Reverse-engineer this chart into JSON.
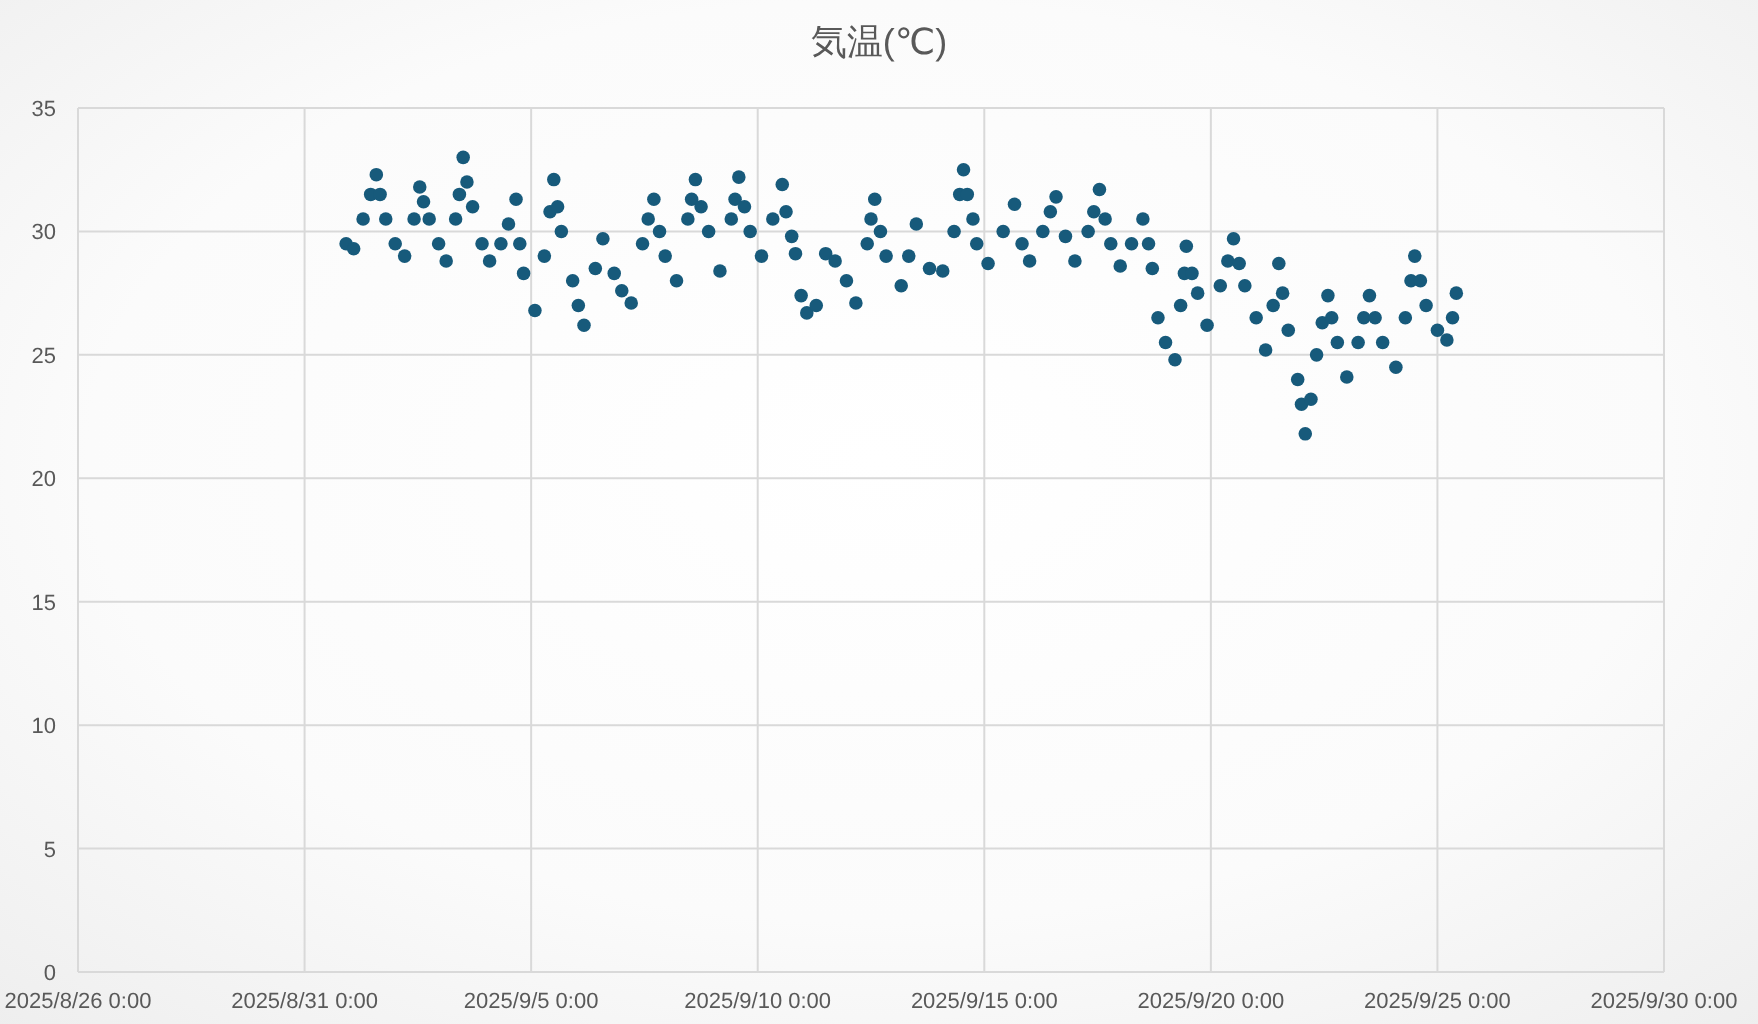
{
  "chart_data": {
    "type": "scatter",
    "title": "気温(℃)",
    "x": [
      "2025-08-31T22:00",
      "2025-09-01T02:00",
      "2025-09-01T07:00",
      "2025-09-01T11:00",
      "2025-09-01T14:00",
      "2025-09-01T16:00",
      "2025-09-01T19:00",
      "2025-09-02T00:00",
      "2025-09-02T05:00",
      "2025-09-02T10:00",
      "2025-09-02T13:00",
      "2025-09-02T15:00",
      "2025-09-02T18:00",
      "2025-09-02T23:00",
      "2025-09-03T03:00",
      "2025-09-03T08:00",
      "2025-09-03T10:00",
      "2025-09-03T12:00",
      "2025-09-03T14:00",
      "2025-09-03T17:00",
      "2025-09-03T22:00",
      "2025-09-04T02:00",
      "2025-09-04T08:00",
      "2025-09-04T12:00",
      "2025-09-04T16:00",
      "2025-09-04T18:00",
      "2025-09-04T20:00",
      "2025-09-05T02:00",
      "2025-09-05T07:00",
      "2025-09-05T10:00",
      "2025-09-05T12:00",
      "2025-09-05T14:00",
      "2025-09-05T16:00",
      "2025-09-05T22:00",
      "2025-09-06T01:00",
      "2025-09-06T04:00",
      "2025-09-06T10:00",
      "2025-09-06T14:00",
      "2025-09-06T20:00",
      "2025-09-07T00:00",
      "2025-09-07T05:00",
      "2025-09-07T11:00",
      "2025-09-07T14:00",
      "2025-09-07T17:00",
      "2025-09-07T20:00",
      "2025-09-07T23:00",
      "2025-09-08T05:00",
      "2025-09-08T11:00",
      "2025-09-08T13:00",
      "2025-09-08T15:00",
      "2025-09-08T18:00",
      "2025-09-08T22:00",
      "2025-09-09T04:00",
      "2025-09-09T10:00",
      "2025-09-09T12:00",
      "2025-09-09T14:00",
      "2025-09-09T17:00",
      "2025-09-09T20:00",
      "2025-09-10T02:00",
      "2025-09-10T08:00",
      "2025-09-10T13:00",
      "2025-09-10T15:00",
      "2025-09-10T18:00",
      "2025-09-10T20:00",
      "2025-09-10T23:00",
      "2025-09-11T02:00",
      "2025-09-11T07:00",
      "2025-09-11T12:00",
      "2025-09-11T17:00",
      "2025-09-11T23:00",
      "2025-09-12T04:00",
      "2025-09-12T10:00",
      "2025-09-12T12:00",
      "2025-09-12T14:00",
      "2025-09-12T17:00",
      "2025-09-12T20:00",
      "2025-09-13T04:00",
      "2025-09-13T08:00",
      "2025-09-13T12:00",
      "2025-09-13T19:00",
      "2025-09-14T02:00",
      "2025-09-14T08:00",
      "2025-09-14T11:00",
      "2025-09-14T13:00",
      "2025-09-14T15:00",
      "2025-09-14T18:00",
      "2025-09-14T20:00",
      "2025-09-15T02:00",
      "2025-09-15T10:00",
      "2025-09-15T16:00",
      "2025-09-15T20:00",
      "2025-09-16T00:00",
      "2025-09-16T07:00",
      "2025-09-16T11:00",
      "2025-09-16T14:00",
      "2025-09-16T19:00",
      "2025-09-17T00:00",
      "2025-09-17T07:00",
      "2025-09-17T10:00",
      "2025-09-17T13:00",
      "2025-09-17T16:00",
      "2025-09-17T19:00",
      "2025-09-18T00:00",
      "2025-09-18T06:00",
      "2025-09-18T12:00",
      "2025-09-18T15:00",
      "2025-09-18T17:00",
      "2025-09-18T20:00",
      "2025-09-19T00:00",
      "2025-09-19T05:00",
      "2025-09-19T08:00",
      "2025-09-19T10:00",
      "2025-09-19T11:00",
      "2025-09-19T14:00",
      "2025-09-19T17:00",
      "2025-09-19T22:00",
      "2025-09-20T05:00",
      "2025-09-20T09:00",
      "2025-09-20T12:00",
      "2025-09-20T15:00",
      "2025-09-20T18:00",
      "2025-09-21T00:00",
      "2025-09-21T05:00",
      "2025-09-21T09:00",
      "2025-09-21T12:00",
      "2025-09-21T14:00",
      "2025-09-21T17:00",
      "2025-09-21T22:00",
      "2025-09-22T00:00",
      "2025-09-22T02:00",
      "2025-09-22T05:00",
      "2025-09-22T08:00",
      "2025-09-22T11:00",
      "2025-09-22T14:00",
      "2025-09-22T16:00",
      "2025-09-22T19:00",
      "2025-09-23T00:00",
      "2025-09-23T06:00",
      "2025-09-23T09:00",
      "2025-09-23T12:00",
      "2025-09-23T15:00",
      "2025-09-23T19:00",
      "2025-09-24T02:00",
      "2025-09-24T07:00",
      "2025-09-24T10:00",
      "2025-09-24T12:00",
      "2025-09-24T15:00",
      "2025-09-24T18:00",
      "2025-09-25T00:00",
      "2025-09-25T05:00",
      "2025-09-25T08:00",
      "2025-09-25T10:00"
    ],
    "values": [
      29.5,
      29.3,
      30.5,
      31.5,
      32.3,
      31.5,
      30.5,
      29.5,
      29.0,
      30.5,
      31.8,
      31.2,
      30.5,
      29.5,
      28.8,
      30.5,
      31.5,
      33.0,
      32.0,
      31.0,
      29.5,
      28.8,
      29.5,
      30.3,
      31.3,
      29.5,
      28.3,
      26.8,
      29.0,
      30.8,
      32.1,
      31.0,
      30.0,
      28.0,
      27.0,
      26.2,
      28.5,
      29.7,
      28.3,
      27.6,
      27.1,
      29.5,
      30.5,
      31.3,
      30.0,
      29.0,
      28.0,
      30.5,
      31.3,
      32.1,
      31.0,
      30.0,
      28.4,
      30.5,
      31.3,
      32.2,
      31.0,
      30.0,
      29.0,
      30.5,
      31.9,
      30.8,
      29.8,
      29.1,
      27.4,
      26.7,
      27.0,
      29.1,
      28.8,
      28.0,
      27.1,
      29.5,
      30.5,
      31.3,
      30.0,
      29.0,
      27.8,
      29.0,
      30.3,
      28.5,
      28.4,
      30.0,
      31.5,
      32.5,
      31.5,
      30.5,
      29.5,
      28.7,
      30.0,
      31.1,
      29.5,
      28.8,
      30.0,
      30.8,
      31.4,
      29.8,
      28.8,
      30.0,
      30.8,
      31.7,
      30.5,
      29.5,
      28.6,
      29.5,
      30.5,
      29.5,
      28.5,
      26.5,
      25.5,
      24.8,
      27.0,
      28.3,
      29.4,
      28.3,
      27.5,
      26.2,
      27.8,
      28.8,
      29.7,
      28.7,
      27.8,
      26.5,
      25.2,
      27.0,
      28.7,
      27.5,
      26.0,
      24.0,
      23.0,
      21.8,
      23.2,
      25.0,
      26.3,
      27.4,
      26.5,
      25.5,
      24.1,
      25.5,
      26.5,
      27.4,
      26.5,
      25.5,
      24.5,
      26.5,
      28.0,
      29.0,
      28.0,
      27.0,
      26.0,
      25.6,
      26.5,
      27.5
    ],
    "color": "#175a7b",
    "xlim": [
      "2025-08-26T00:00",
      "2025-09-30T00:00"
    ],
    "xticks": [
      {
        "value": "2025-08-26T00:00",
        "label": "2025/8/26 0:00"
      },
      {
        "value": "2025-08-31T00:00",
        "label": "2025/8/31 0:00"
      },
      {
        "value": "2025-09-05T00:00",
        "label": "2025/9/5 0:00"
      },
      {
        "value": "2025-09-10T00:00",
        "label": "2025/9/10 0:00"
      },
      {
        "value": "2025-09-15T00:00",
        "label": "2025/9/15 0:00"
      },
      {
        "value": "2025-09-20T00:00",
        "label": "2025/9/20 0:00"
      },
      {
        "value": "2025-09-25T00:00",
        "label": "2025/9/25 0:00"
      },
      {
        "value": "2025-09-30T00:00",
        "label": "2025/9/30 0:00"
      }
    ],
    "ylim": [
      0,
      35
    ],
    "yticks": [
      0,
      5,
      10,
      15,
      20,
      25,
      30,
      35
    ],
    "grid": true,
    "marker": "circle"
  }
}
